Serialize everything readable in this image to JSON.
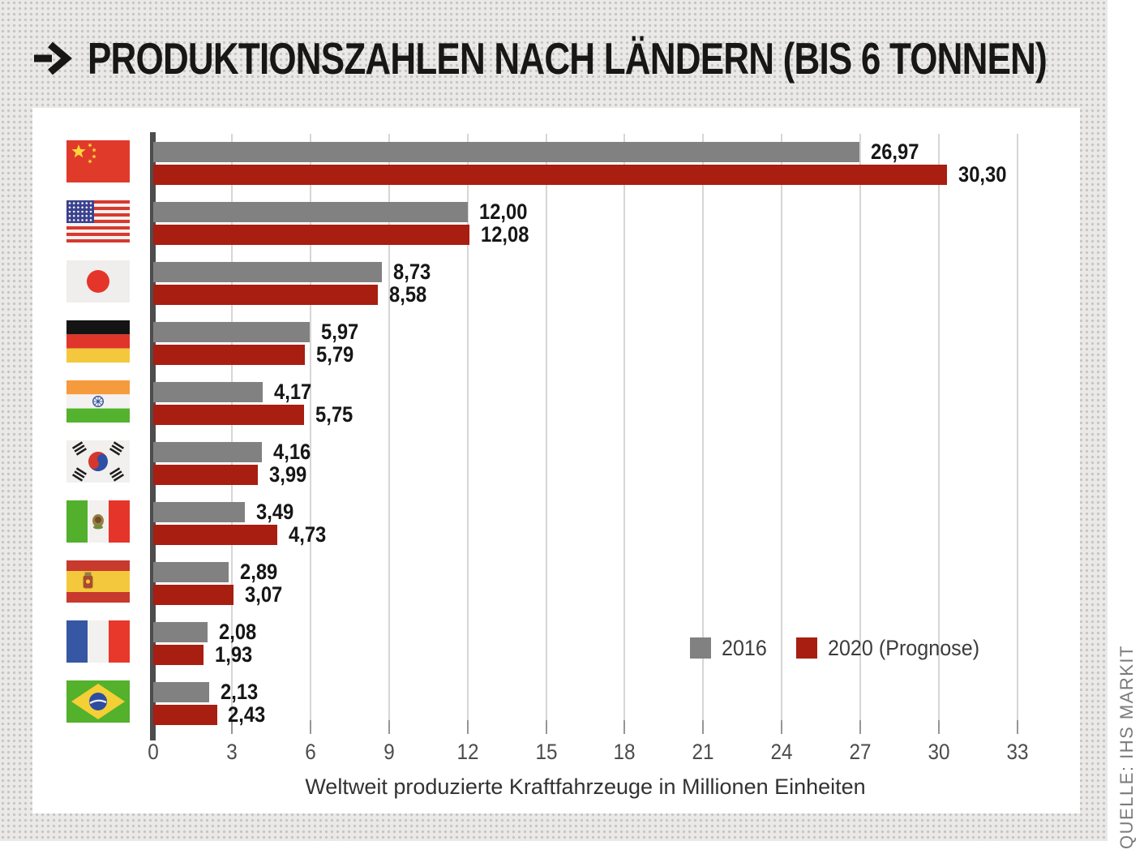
{
  "title": "PRODUKTIONSZAHLEN NACH LÄNDERN (BIS 6 TONNEN)",
  "source": "QUELLE: IHS MARKIT",
  "colors": {
    "bar_2016": "#818181",
    "bar_2020": "#a81e10",
    "axis": "#4d4d4d",
    "background": "#eae9e7"
  },
  "legend": {
    "items": [
      {
        "label": "2016",
        "color": "#818181"
      },
      {
        "label": "2020 (Prognose)",
        "color": "#a81e10"
      }
    ]
  },
  "chart_data": {
    "type": "bar",
    "orientation": "horizontal",
    "title": "Produktionszahlen nach Ländern (bis 6 Tonnen)",
    "xlabel": "Weltweit produzierte Kraftfahrzeuge in Millionen Einheiten",
    "ylabel": "",
    "xlim": [
      0,
      33
    ],
    "xticks": [
      0,
      3,
      6,
      9,
      12,
      15,
      18,
      21,
      24,
      27,
      30,
      33
    ],
    "grid": true,
    "legend_position": "inside-right",
    "categories": [
      "China",
      "USA",
      "Japan",
      "Deutschland",
      "Indien",
      "Südkorea",
      "Mexiko",
      "Spanien",
      "Frankreich",
      "Brasilien"
    ],
    "flags": [
      "cn",
      "us",
      "jp",
      "de",
      "in",
      "kr",
      "mx",
      "es",
      "fr",
      "br"
    ],
    "series": [
      {
        "name": "2016",
        "color": "#818181",
        "values": [
          26.97,
          12.0,
          8.73,
          5.97,
          4.17,
          4.16,
          3.49,
          2.89,
          2.08,
          2.13
        ],
        "labels": [
          "26,97",
          "12,00",
          "8,73",
          "5,97",
          "4,17",
          "4,16",
          "3,49",
          "2,89",
          "2,08",
          "2,13"
        ]
      },
      {
        "name": "2020 (Prognose)",
        "color": "#a81e10",
        "values": [
          30.3,
          12.08,
          8.58,
          5.79,
          5.75,
          3.99,
          4.73,
          3.07,
          1.93,
          2.43
        ],
        "labels": [
          "30,30",
          "12,08",
          "8,58",
          "5,79",
          "5,75",
          "3,99",
          "4,73",
          "3,07",
          "1,93",
          "2,43"
        ]
      }
    ]
  }
}
